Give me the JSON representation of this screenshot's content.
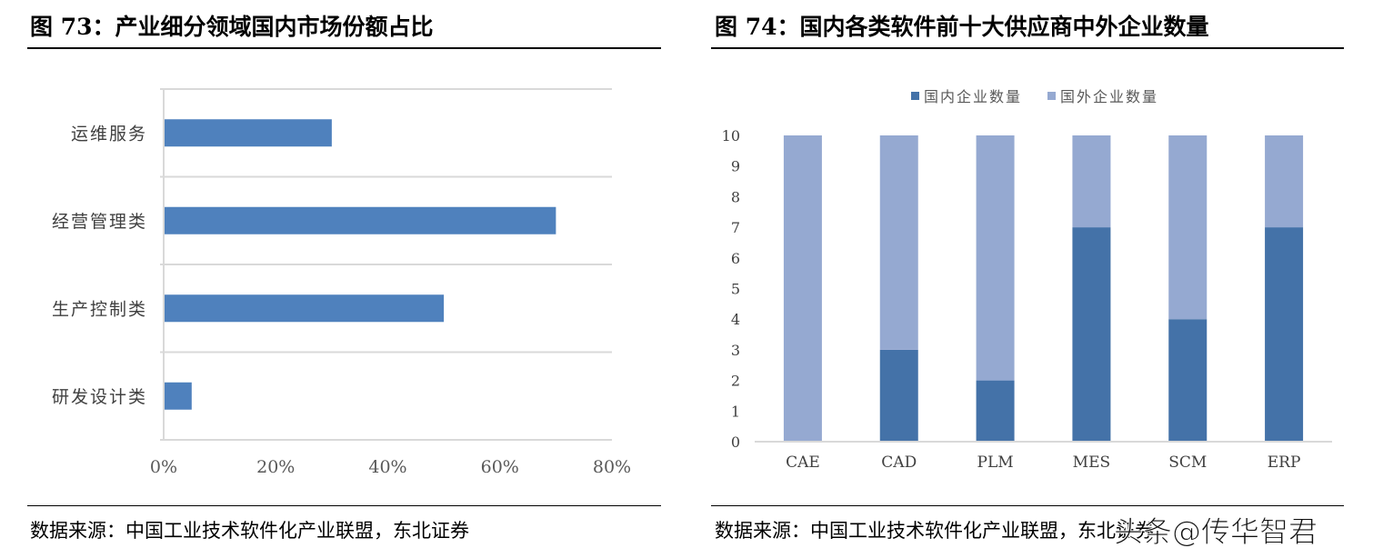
{
  "left": {
    "title": "图 73：产业细分领域国内市场份额占比",
    "source": "数据来源：中国工业技术软件化产业联盟，东北证券"
  },
  "right": {
    "title": "图 74：国内各类软件前十大供应商中外企业数量",
    "source": "数据来源：中国工业技术软件化产业联盟，东北证券"
  },
  "watermark": "头条@传华智君",
  "chart_data": [
    {
      "type": "bar",
      "orientation": "horizontal",
      "categories": [
        "运维服务",
        "经营管理类",
        "生产控制类",
        "研发设计类"
      ],
      "values": [
        30,
        70,
        50,
        5
      ],
      "xlim": [
        0,
        80
      ],
      "xticks": [
        "0%",
        "20%",
        "40%",
        "60%",
        "80%"
      ],
      "grid": "horizontal category separators",
      "color": "#4f81bd"
    },
    {
      "type": "bar",
      "stacked": true,
      "categories": [
        "CAE",
        "CAD",
        "PLM",
        "MES",
        "SCM",
        "ERP"
      ],
      "series": [
        {
          "name": "国内企业数量",
          "values": [
            0,
            3,
            2,
            7,
            4,
            7
          ],
          "color": "#4472a8"
        },
        {
          "name": "国外企业数量",
          "values": [
            10,
            7,
            8,
            3,
            6,
            3
          ],
          "color": "#95a9d1"
        }
      ],
      "ylim": [
        0,
        10
      ],
      "yticks": [
        "0",
        "1",
        "2",
        "3",
        "4",
        "5",
        "6",
        "7",
        "8",
        "9",
        "10"
      ],
      "legend": "top",
      "grid": false
    }
  ]
}
